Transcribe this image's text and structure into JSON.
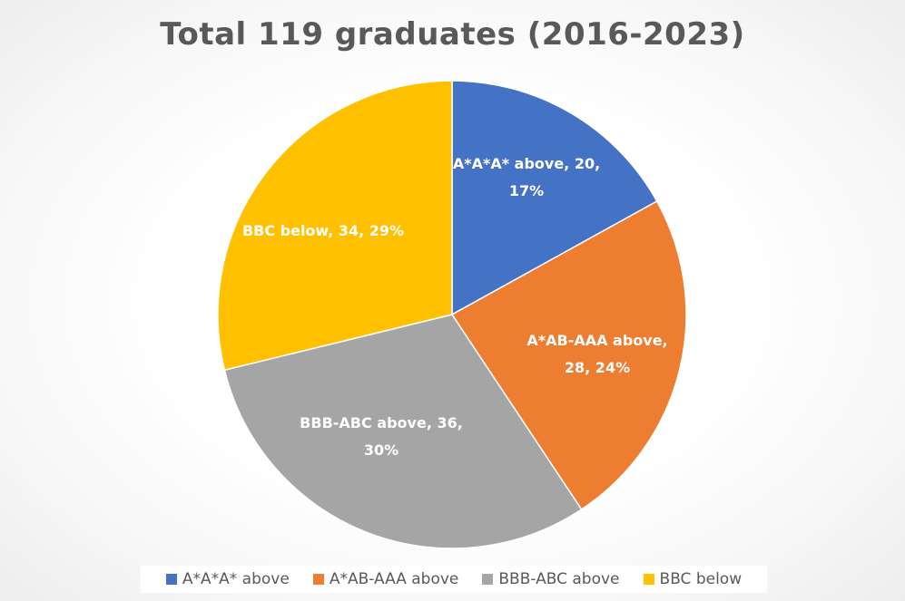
{
  "chart_data": {
    "type": "pie",
    "title": "Total 119 graduates (2016-2023)",
    "legend_position": "bottom",
    "slices": [
      {
        "name": "A*A*A* above",
        "value": 20,
        "percent": "17%",
        "color": "#4472C4",
        "label_lines": [
          "A*A*A* above, 20,",
          "17%"
        ]
      },
      {
        "name": "A*AB-AAA above",
        "value": 28,
        "percent": "24%",
        "color": "#ED7D31",
        "label_lines": [
          "A*AB-AAA above,",
          "28, 24%"
        ]
      },
      {
        "name": "BBB-ABC above",
        "value": 36,
        "percent": "30%",
        "color": "#A5A5A5",
        "label_lines": [
          "BBB-ABC above, 36,",
          "30%"
        ]
      },
      {
        "name": "BBC below",
        "value": 34,
        "percent": "29%",
        "color": "#FFC000",
        "label_lines": [
          "BBC below, 34, 29%"
        ]
      }
    ]
  }
}
